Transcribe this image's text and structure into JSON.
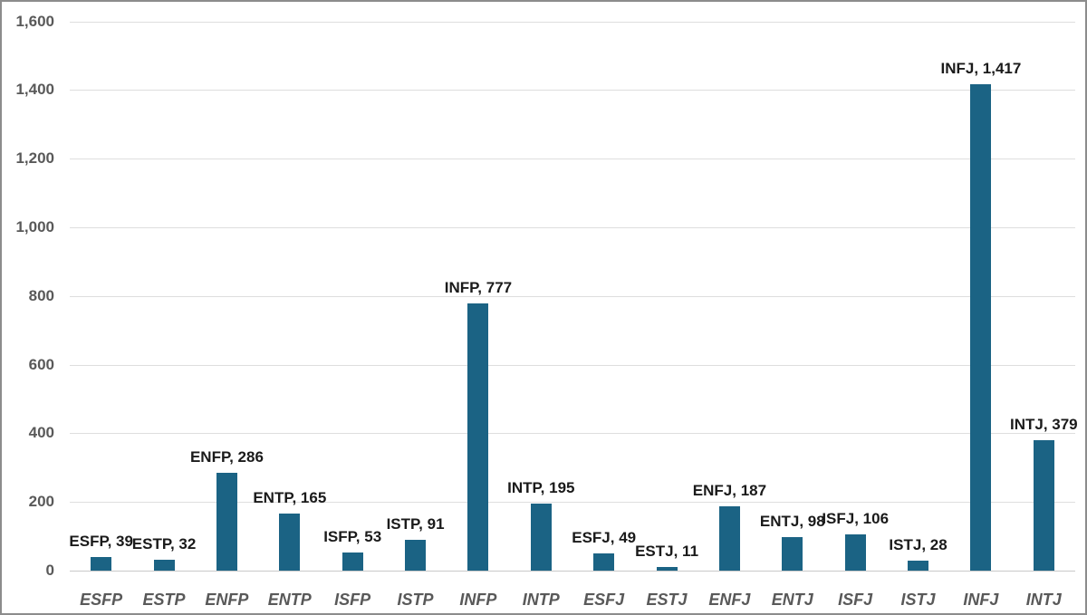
{
  "chart_data": {
    "type": "bar",
    "title": "",
    "xlabel": "",
    "ylabel": "",
    "categories": [
      "ESFP",
      "ESTP",
      "ENFP",
      "ENTP",
      "ISFP",
      "ISTP",
      "INFP",
      "INTP",
      "ESFJ",
      "ESTJ",
      "ENFJ",
      "ENTJ",
      "ISFJ",
      "ISTJ",
      "INFJ",
      "INTJ"
    ],
    "values": [
      39,
      32,
      286,
      165,
      53,
      91,
      777,
      195,
      49,
      11,
      187,
      98,
      106,
      28,
      1417,
      379
    ],
    "data_labels": [
      "ESFP, 39",
      "ESTP, 32",
      "ENFP, 286",
      "ENTP, 165",
      "ISFP, 53",
      "ISTP, 91",
      "INFP, 777",
      "INTP, 195",
      "ESFJ, 49",
      "ESTJ, 11",
      "ENFJ, 187",
      "ENTJ, 98",
      "ISFJ, 106",
      "ISTJ, 28",
      "INFJ, 1,417",
      "INTJ, 379"
    ],
    "y_ticks": [
      {
        "value": 0,
        "label": "0"
      },
      {
        "value": 200,
        "label": "200"
      },
      {
        "value": 400,
        "label": "400"
      },
      {
        "value": 600,
        "label": "600"
      },
      {
        "value": 800,
        "label": "800"
      },
      {
        "value": 1000,
        "label": "1,000"
      },
      {
        "value": 1200,
        "label": "1,200"
      },
      {
        "value": 1400,
        "label": "1,400"
      },
      {
        "value": 1600,
        "label": "1,600"
      }
    ],
    "ylim": [
      0,
      1600
    ],
    "grid": true,
    "legend_position": "none",
    "colors": {
      "bar": "#1b6384",
      "gridline": "#dedede",
      "axis_line": "#c9c9c9",
      "axis_label": "#595959",
      "data_label": "#1a1a1a",
      "frame_border": "#8c8c8c",
      "background": "#ffffff"
    }
  }
}
